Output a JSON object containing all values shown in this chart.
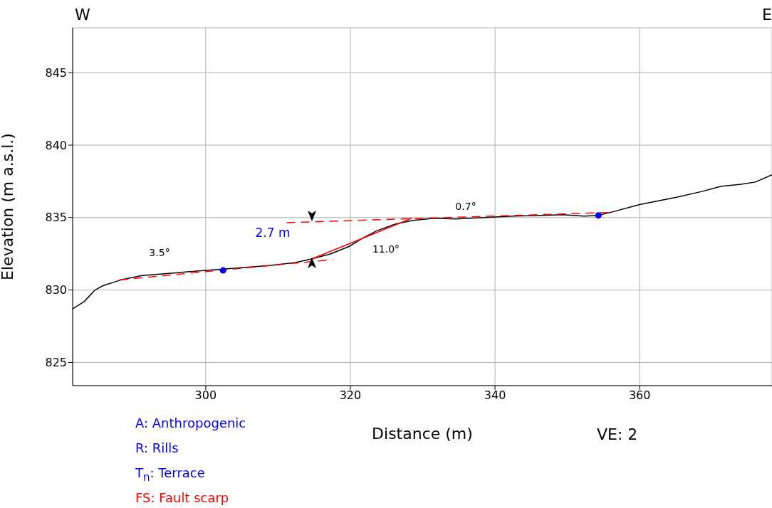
{
  "chart_data": {
    "type": "line",
    "xlabel": "Distance (m)",
    "ylabel": "Elevation (m a.s.l.)",
    "xlim": [
      281.6,
      378.3
    ],
    "ylim": [
      823.4,
      848.1
    ],
    "xticks": [
      300,
      320,
      340,
      360
    ],
    "yticks": [
      825,
      830,
      835,
      840,
      845
    ],
    "grid": true,
    "series": [
      {
        "color": "#000000",
        "line_style": "solid",
        "marker": "none",
        "x": [
          281.6,
          283.2,
          284.7,
          285.8,
          288.3,
          291.2,
          296.2,
          300,
          304,
          309,
          312.4,
          314.7,
          317.3,
          319.8,
          321.8,
          323.7,
          326.2,
          328.7,
          331.6,
          334.6,
          338.5,
          342.5,
          346.4,
          349.4,
          352.3,
          354.3,
          356.3,
          360,
          365.1,
          368.6,
          371.2,
          374,
          376,
          378.3
        ],
        "values": [
          828.7,
          829.2,
          830,
          830.3,
          830.7,
          831,
          831.2,
          831.35,
          831.5,
          831.7,
          831.9,
          832.15,
          832.5,
          833,
          833.6,
          834.1,
          834.55,
          834.8,
          834.95,
          834.9,
          835,
          835.1,
          835.15,
          835.2,
          835.1,
          835.15,
          835.4,
          835.9,
          836.4,
          836.8,
          837.15,
          837.3,
          837.45,
          837.95
        ]
      },
      {
        "color": "#ff0000",
        "line_style": "dashed",
        "marker": "none",
        "x": [
          288.1,
          317.6
        ],
        "values": [
          830.7,
          832.1
        ]
      },
      {
        "color": "#ff0000",
        "line_style": "dashed",
        "marker": "none",
        "x": [
          311.2,
          355.7
        ],
        "values": [
          834.65,
          835.35
        ]
      },
      {
        "color": "#ff0000",
        "line_style": "solid",
        "marker": "none",
        "x": [
          314.7,
          328.5
        ],
        "values": [
          832.15,
          834.95
        ]
      },
      {
        "type": "scatter",
        "color": "#0000ff",
        "marker": "circle",
        "x": [
          302.4,
          354.3
        ],
        "values": [
          831.35,
          835.15
        ]
      }
    ],
    "annotations": [
      "3.5°",
      "2.7 m",
      "11.0°",
      "0.7°",
      "W",
      "E",
      "VE: 2",
      "A: Anthropogenic",
      "R: Rills",
      "T$_{n}$: Terrace",
      "FS: Fault scarp"
    ]
  }
}
